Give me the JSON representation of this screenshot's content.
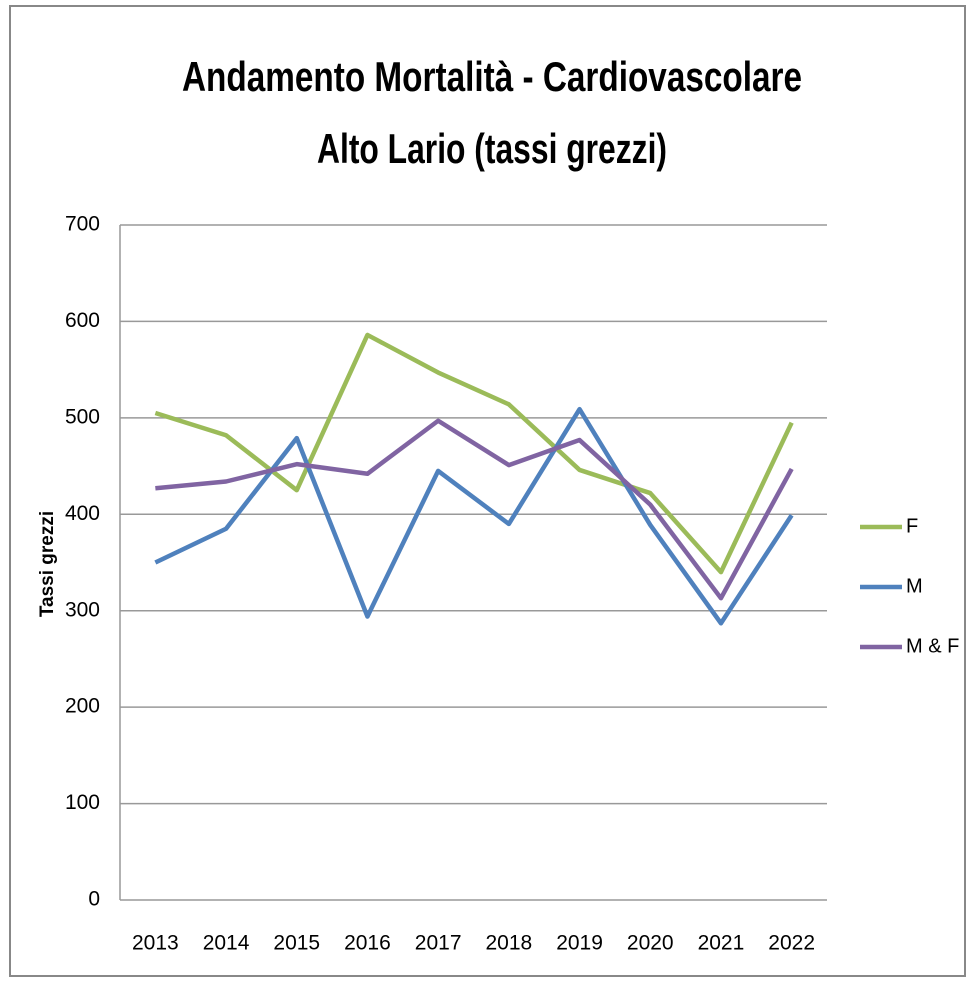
{
  "chart_data": {
    "type": "line",
    "title": [
      "Andamento Mortalità - Cardiovascolare",
      "Alto Lario (tassi grezzi)"
    ],
    "y_label": "Tassi grezzi",
    "categories": [
      "2013",
      "2014",
      "2015",
      "2016",
      "2017",
      "2018",
      "2019",
      "2020",
      "2021",
      "2022"
    ],
    "series": [
      {
        "name": "F",
        "color": "#9bbb59",
        "values": [
          505,
          482,
          425,
          586,
          547,
          514,
          446,
          422,
          340,
          495
        ]
      },
      {
        "name": "M",
        "color": "#4f81bd",
        "values": [
          350,
          385,
          479,
          294,
          445,
          390,
          509,
          389,
          287,
          399
        ]
      },
      {
        "name": "M & F",
        "color": "#8064a2",
        "values": [
          427,
          434,
          452,
          442,
          497,
          451,
          477,
          410,
          313,
          447
        ]
      }
    ],
    "ylim": [
      0,
      700
    ],
    "yticks": [
      0,
      100,
      200,
      300,
      400,
      500,
      600,
      700
    ],
    "grid": true,
    "legend": "right"
  }
}
